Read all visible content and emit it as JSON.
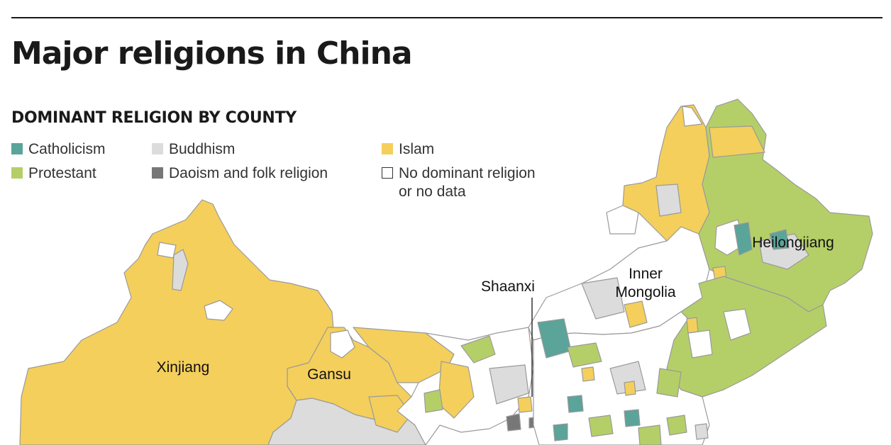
{
  "title": "Major religions in China",
  "legend": {
    "title": "DOMINANT RELIGION BY COUNTY",
    "items": [
      {
        "label": "Catholicism",
        "color": "#5aa49a"
      },
      {
        "label": "Protestant",
        "color": "#b5cf68"
      },
      {
        "label": "Buddhism",
        "color": "#dcdcdc"
      },
      {
        "label": "Daoism and folk religion",
        "color": "#777777"
      },
      {
        "label": "Islam",
        "color": "#f4cf5b"
      },
      {
        "label": "No dominant religion\nor no data",
        "color": "#ffffff"
      }
    ]
  },
  "map": {
    "region_labels": [
      "Xinjiang",
      "Gansu",
      "Shaanxi",
      "Inner",
      "Mongolia",
      "Heilongjiang"
    ],
    "border_color": "#9a9a9a"
  }
}
